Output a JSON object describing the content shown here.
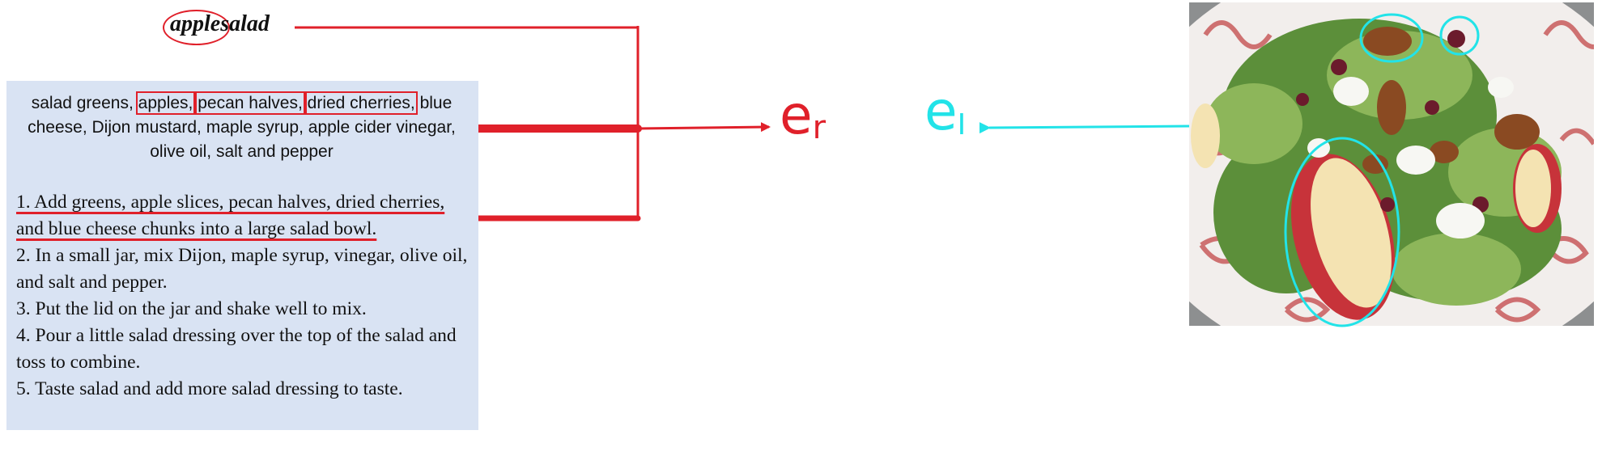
{
  "title": {
    "highlighted_word": "apple",
    "rest": "salad"
  },
  "ingredients": {
    "prefix": "salad greens,",
    "highlighted": [
      "apples,",
      "pecan halves,",
      "dried cherries,"
    ],
    "rest": "blue cheese, Dijon mustard, maple syrup, apple cider vinegar, olive oil, salt and pepper"
  },
  "instructions": [
    "1. Add greens, apple slices, pecan halves, dried cherries, and blue cheese chunks into a large salad bowl.",
    "2. In a small jar, mix Dijon, maple syrup, vinegar, olive oil, and salt and pepper.",
    "3. Put the lid on the jar and shake well to mix.",
    "4. Pour a little salad dressing over the top of the salad and toss to combine.",
    "5. Taste salad and add more salad dressing to taste."
  ],
  "labels": {
    "recipe_embedding": {
      "base": "e",
      "sub": "r"
    },
    "image_embedding": {
      "base": "e",
      "sub": "I"
    }
  },
  "colors": {
    "recipe_accent": "#e0202a",
    "image_accent": "#22e3e8",
    "panel_background": "#d9e3f3"
  },
  "photo": {
    "description_icon": "salad-photo"
  }
}
